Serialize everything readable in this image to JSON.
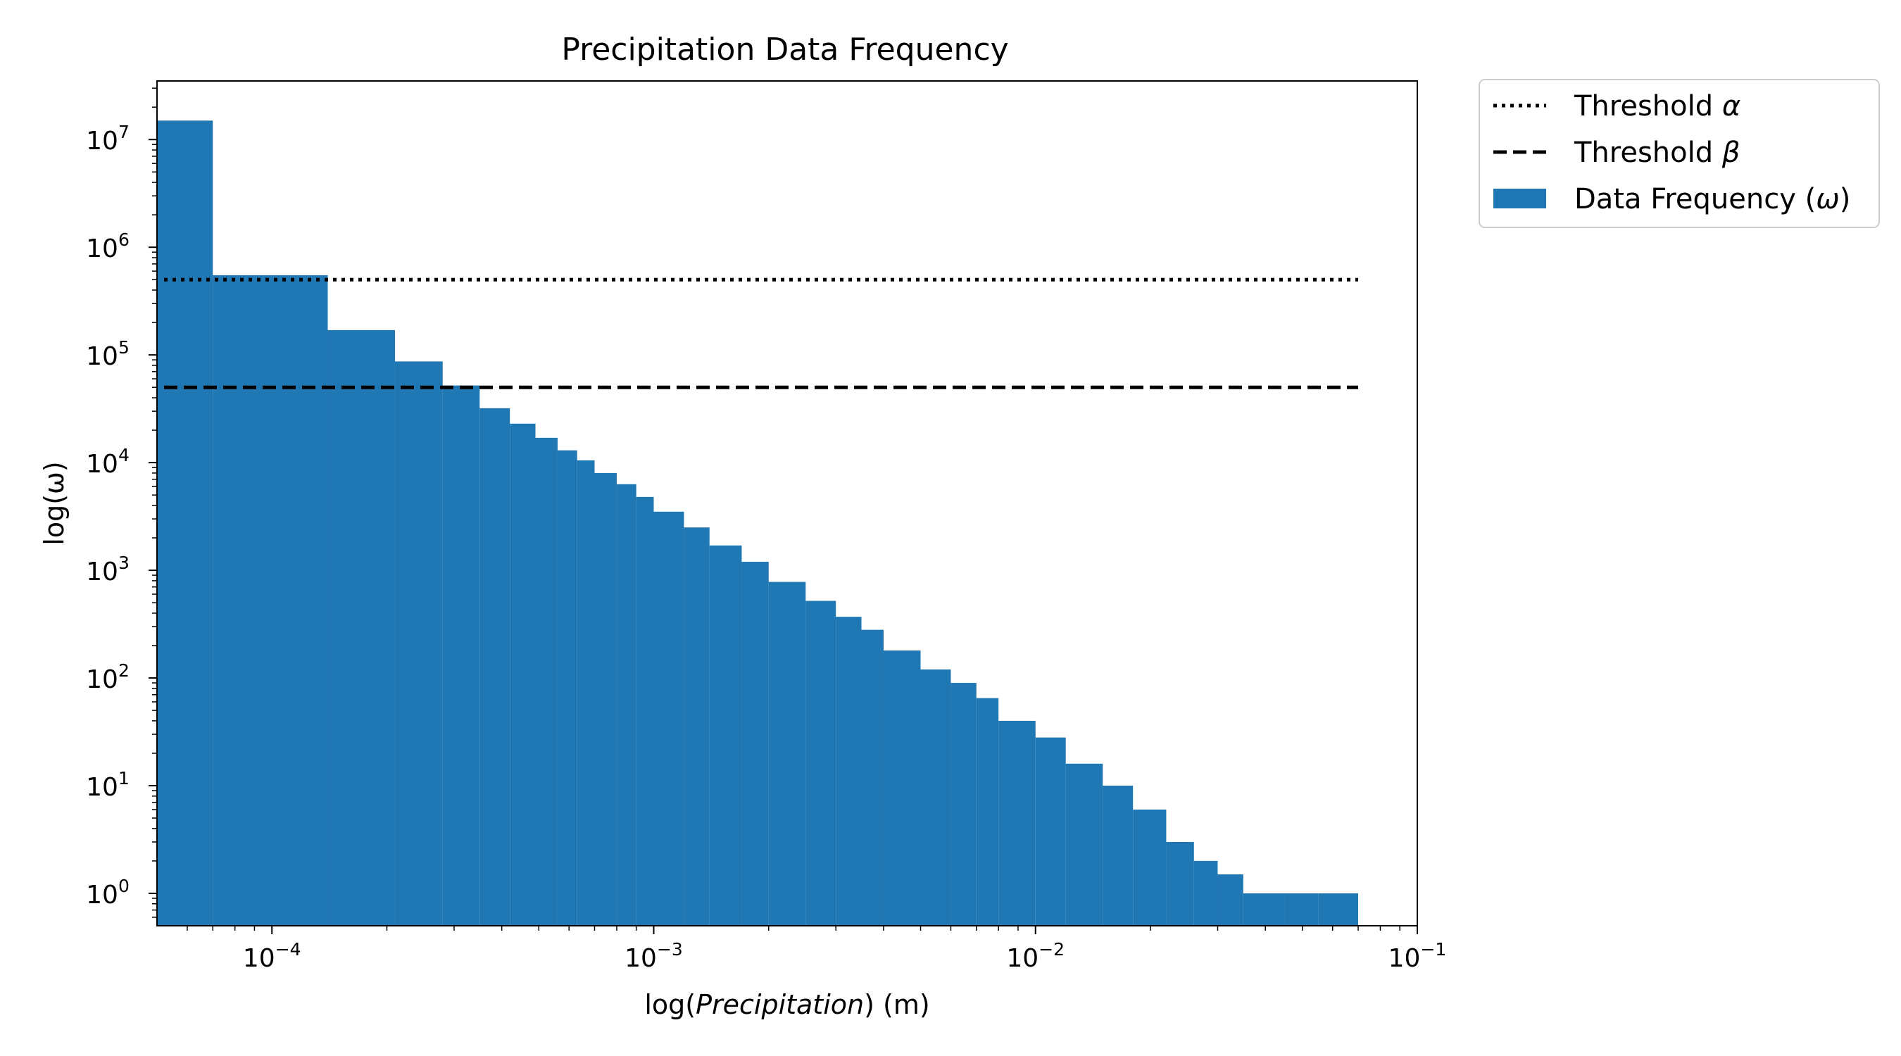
{
  "chart_data": {
    "type": "bar",
    "title": "Precipitation Data Frequency",
    "xlabel": {
      "prefix": "log(",
      "italic": "Precipitation",
      "suffix": ") (m)"
    },
    "ylabel": "log(ω)",
    "x_scale": "log",
    "y_scale": "log",
    "xlim": [
      5e-05,
      0.1
    ],
    "ylim": [
      0.5,
      35000000.0
    ],
    "x_ticks": [
      {
        "value": 0.0001,
        "base": "10",
        "exp": "−4"
      },
      {
        "value": 0.001,
        "base": "10",
        "exp": "−3"
      },
      {
        "value": 0.01,
        "base": "10",
        "exp": "−2"
      },
      {
        "value": 0.1,
        "base": "10",
        "exp": "−1"
      }
    ],
    "y_ticks": [
      {
        "value": 1,
        "base": "10",
        "exp": "0"
      },
      {
        "value": 10,
        "base": "10",
        "exp": "1"
      },
      {
        "value": 100,
        "base": "10",
        "exp": "2"
      },
      {
        "value": 1000,
        "base": "10",
        "exp": "3"
      },
      {
        "value": 10000,
        "base": "10",
        "exp": "4"
      },
      {
        "value": 100000,
        "base": "10",
        "exp": "5"
      },
      {
        "value": 1000000,
        "base": "10",
        "exp": "6"
      },
      {
        "value": 10000000,
        "base": "10",
        "exp": "7"
      }
    ],
    "bin_width": 7e-05,
    "bin_start": 0,
    "histogram": [
      {
        "x": 7e-05,
        "count": 15000000
      },
      {
        "x": 0.00014,
        "count": 550000
      },
      {
        "x": 0.00021,
        "count": 170000
      },
      {
        "x": 0.00028,
        "count": 87000
      },
      {
        "x": 0.00035,
        "count": 52000
      },
      {
        "x": 0.00042,
        "count": 32000
      },
      {
        "x": 0.00049,
        "count": 23000
      },
      {
        "x": 0.00056,
        "count": 17000
      },
      {
        "x": 0.00063,
        "count": 13000
      },
      {
        "x": 0.0007,
        "count": 10500
      },
      {
        "x": 0.0008,
        "count": 8000
      },
      {
        "x": 0.0009,
        "count": 6300
      },
      {
        "x": 0.001,
        "count": 4800
      },
      {
        "x": 0.0012,
        "count": 3500
      },
      {
        "x": 0.0014,
        "count": 2500
      },
      {
        "x": 0.0017,
        "count": 1700
      },
      {
        "x": 0.002,
        "count": 1200
      },
      {
        "x": 0.0025,
        "count": 780
      },
      {
        "x": 0.003,
        "count": 520
      },
      {
        "x": 0.0035,
        "count": 370
      },
      {
        "x": 0.004,
        "count": 280
      },
      {
        "x": 0.005,
        "count": 180
      },
      {
        "x": 0.006,
        "count": 120
      },
      {
        "x": 0.007,
        "count": 90
      },
      {
        "x": 0.008,
        "count": 65
      },
      {
        "x": 0.01,
        "count": 40
      },
      {
        "x": 0.012,
        "count": 28
      },
      {
        "x": 0.015,
        "count": 16
      },
      {
        "x": 0.018,
        "count": 10
      },
      {
        "x": 0.022,
        "count": 6
      },
      {
        "x": 0.026,
        "count": 3
      },
      {
        "x": 0.03,
        "count": 2
      },
      {
        "x": 0.035,
        "count": 1.5
      },
      {
        "x": 0.045,
        "count": 1
      },
      {
        "x": 0.055,
        "count": 1
      },
      {
        "x": 0.07,
        "count": 1
      }
    ],
    "thresholds": [
      {
        "name": "Threshold α",
        "label_base": "Threshold ",
        "label_symbol": "α",
        "value": 500000,
        "style": "dotted"
      },
      {
        "name": "Threshold β",
        "label_base": "Threshold ",
        "label_symbol": "β",
        "value": 50000,
        "style": "dashed"
      }
    ],
    "threshold_x_range": [
      5e-05,
      0.07
    ],
    "legend": {
      "placement": "outside-top-right",
      "entries": [
        {
          "base": "Threshold ",
          "symbol": "α",
          "suffix": "",
          "style": "dotted"
        },
        {
          "base": "Threshold ",
          "symbol": "β",
          "suffix": "",
          "style": "dashed"
        },
        {
          "base": "Data Frequency (",
          "symbol": "ω",
          "suffix": ")",
          "style": "patch"
        }
      ]
    },
    "bar_color": "#1f77b4",
    "line_color": "#000000",
    "grid": false
  }
}
